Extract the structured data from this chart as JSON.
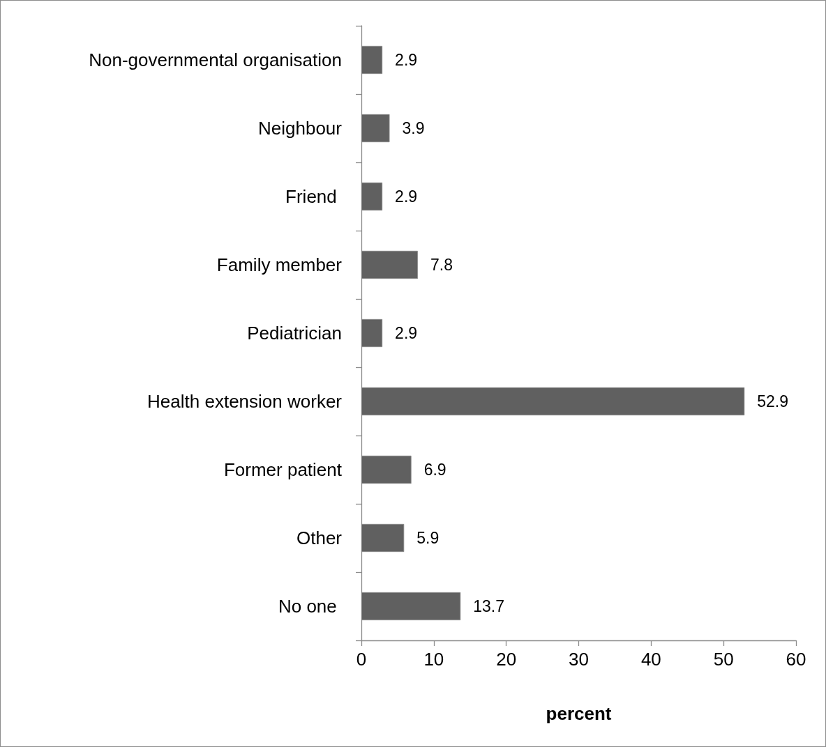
{
  "chart_data": {
    "type": "bar",
    "orientation": "horizontal",
    "categories": [
      "Non-governmental organisation",
      "Neighbour",
      "Friend ",
      "Family member",
      "Pediatrician",
      "Health extension worker",
      "Former patient",
      "Other",
      "No one "
    ],
    "values": [
      2.9,
      3.9,
      2.9,
      7.8,
      2.9,
      52.9,
      6.9,
      5.9,
      13.7
    ],
    "color": "#606060",
    "data_labels": true,
    "xlim": [
      0,
      60
    ],
    "xticks": [
      0,
      10,
      20,
      30,
      40,
      50,
      60
    ],
    "xlabel": "percent",
    "grid": false
  }
}
